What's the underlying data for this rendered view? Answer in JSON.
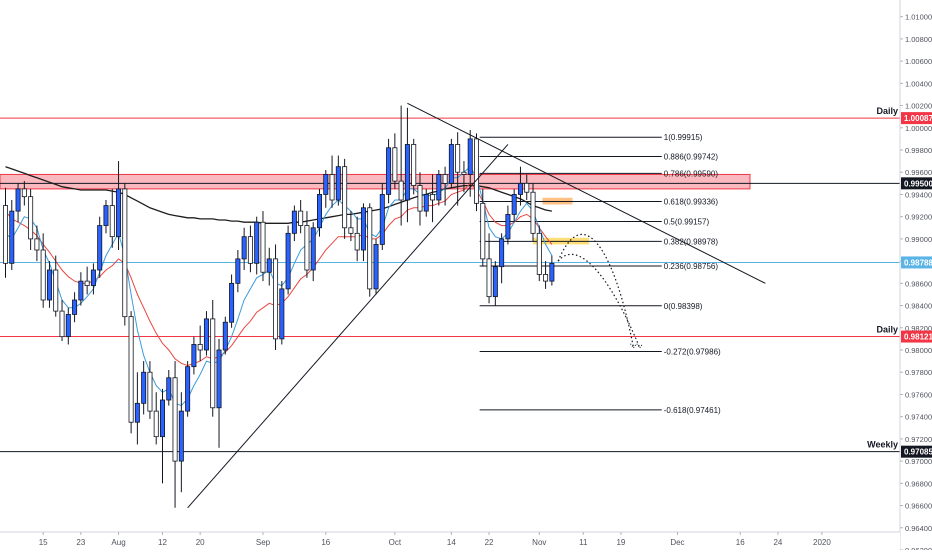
{
  "chart_data": {
    "type": "candlestick",
    "title": "",
    "xlabel": "",
    "ylabel": "",
    "ylim": [
      0.962,
      1.0115
    ],
    "yticks": [
      "1.01000",
      "1.00800",
      "1.00600",
      "1.00400",
      "1.00200",
      "1.00000",
      "0.99800",
      "0.99600",
      "0.99400",
      "0.99200",
      "0.99000",
      "0.98800",
      "0.98600",
      "0.98400",
      "0.98200",
      "0.98000",
      "0.97800",
      "0.97600",
      "0.97400",
      "0.97200",
      "0.97000",
      "0.96800",
      "0.96600",
      "0.96400",
      "0.96200"
    ],
    "xticks": [
      {
        "label": "15",
        "bar": 6
      },
      {
        "label": "23",
        "bar": 12
      },
      {
        "label": "Aug",
        "bar": 18
      },
      {
        "label": "12",
        "bar": 25
      },
      {
        "label": "20",
        "bar": 31
      },
      {
        "label": "Sep",
        "bar": 41
      },
      {
        "label": "16",
        "bar": 51
      },
      {
        "label": "Oct",
        "bar": 62
      },
      {
        "label": "14",
        "bar": 71
      },
      {
        "label": "22",
        "bar": 77
      },
      {
        "label": "Nov",
        "bar": 85
      },
      {
        "label": "11",
        "bar": 92
      },
      {
        "label": "19",
        "bar": 98
      },
      {
        "label": "Dec",
        "bar": 107
      },
      {
        "label": "16",
        "bar": 117
      },
      {
        "label": "24",
        "bar": 123
      },
      {
        "label": "2020",
        "bar": 130
      }
    ],
    "candles": [
      [
        0.993,
        0.9946,
        0.9865,
        0.9878
      ],
      [
        0.9878,
        0.9935,
        0.9872,
        0.9925
      ],
      [
        0.9925,
        0.995,
        0.9915,
        0.9945
      ],
      [
        0.9945,
        0.9952,
        0.993,
        0.9938
      ],
      [
        0.9938,
        0.9945,
        0.989,
        0.99
      ],
      [
        0.99,
        0.9912,
        0.988,
        0.989
      ],
      [
        0.989,
        0.9905,
        0.9838,
        0.9845
      ],
      [
        0.9845,
        0.988,
        0.9838,
        0.9872
      ],
      [
        0.9872,
        0.9885,
        0.983,
        0.9835
      ],
      [
        0.9835,
        0.9845,
        0.9808,
        0.9812
      ],
      [
        0.9812,
        0.9838,
        0.9805,
        0.9832
      ],
      [
        0.9832,
        0.9852,
        0.9825,
        0.9845
      ],
      [
        0.9845,
        0.987,
        0.984,
        0.9862
      ],
      [
        0.9862,
        0.9875,
        0.985,
        0.9858
      ],
      [
        0.9858,
        0.9878,
        0.985,
        0.9872
      ],
      [
        0.9872,
        0.992,
        0.9865,
        0.9912
      ],
      [
        0.9912,
        0.9935,
        0.9905,
        0.993
      ],
      [
        0.993,
        0.9945,
        0.9892,
        0.9902
      ],
      [
        0.9902,
        0.997,
        0.989,
        0.9945
      ],
      [
        0.9945,
        0.995,
        0.9822,
        0.983
      ],
      [
        0.983,
        0.9835,
        0.9725,
        0.9735
      ],
      [
        0.9735,
        0.978,
        0.9715,
        0.9752
      ],
      [
        0.9752,
        0.979,
        0.9742,
        0.978
      ],
      [
        0.978,
        0.979,
        0.9738,
        0.9745
      ],
      [
        0.9745,
        0.9762,
        0.9715,
        0.9722
      ],
      [
        0.9722,
        0.9765,
        0.968,
        0.9755
      ],
      [
        0.9755,
        0.9782,
        0.975,
        0.9775
      ],
      [
        0.9775,
        0.979,
        0.9658,
        0.97
      ],
      [
        0.97,
        0.9762,
        0.9672,
        0.9745
      ],
      [
        0.9745,
        0.979,
        0.974,
        0.9785
      ],
      [
        0.9785,
        0.9812,
        0.9778,
        0.9805
      ],
      [
        0.9805,
        0.9822,
        0.979,
        0.98
      ],
      [
        0.98,
        0.9835,
        0.9795,
        0.9828
      ],
      [
        0.9828,
        0.9845,
        0.974,
        0.9748
      ],
      [
        0.9748,
        0.981,
        0.9712,
        0.98
      ],
      [
        0.98,
        0.983,
        0.9796,
        0.9825
      ],
      [
        0.9825,
        0.9868,
        0.982,
        0.986
      ],
      [
        0.986,
        0.989,
        0.9852,
        0.9882
      ],
      [
        0.9882,
        0.991,
        0.9872,
        0.9902
      ],
      [
        0.9902,
        0.9912,
        0.987,
        0.9878
      ],
      [
        0.9878,
        0.992,
        0.9868,
        0.9915
      ],
      [
        0.9915,
        0.9925,
        0.9862,
        0.987
      ],
      [
        0.987,
        0.9892,
        0.9858,
        0.9882
      ],
      [
        0.9882,
        0.9895,
        0.98,
        0.981
      ],
      [
        0.981,
        0.9862,
        0.9805,
        0.9855
      ],
      [
        0.9855,
        0.9912,
        0.985,
        0.9905
      ],
      [
        0.9905,
        0.993,
        0.9898,
        0.9925
      ],
      [
        0.9925,
        0.9935,
        0.9905,
        0.9912
      ],
      [
        0.9912,
        0.9925,
        0.9865,
        0.9872
      ],
      [
        0.9872,
        0.9915,
        0.9862,
        0.991
      ],
      [
        0.991,
        0.9945,
        0.9902,
        0.994
      ],
      [
        0.994,
        0.9962,
        0.9928,
        0.9958
      ],
      [
        0.9958,
        0.9975,
        0.9928,
        0.9935
      ],
      [
        0.9935,
        0.9975,
        0.993,
        0.9965
      ],
      [
        0.9965,
        0.9972,
        0.99,
        0.991
      ],
      [
        0.991,
        0.9925,
        0.9898,
        0.9905
      ],
      [
        0.9905,
        0.992,
        0.988,
        0.989
      ],
      [
        0.989,
        0.9932,
        0.988,
        0.9928
      ],
      [
        0.9928,
        0.9932,
        0.9848,
        0.9855
      ],
      [
        0.9855,
        0.99,
        0.985,
        0.9895
      ],
      [
        0.9895,
        0.995,
        0.989,
        0.994
      ],
      [
        0.994,
        0.999,
        0.9932,
        0.9982
      ],
      [
        0.9982,
        0.9995,
        0.9945,
        0.9952
      ],
      [
        0.9952,
        1.002,
        0.9912,
        0.9935
      ],
      [
        0.9935,
        1.0018,
        0.9915,
        0.9985
      ],
      [
        0.9985,
        0.999,
        0.994,
        0.9948
      ],
      [
        0.9948,
        0.996,
        0.9912,
        0.9925
      ],
      [
        0.9925,
        0.9945,
        0.992,
        0.994
      ],
      [
        0.994,
        0.9958,
        0.9915,
        0.9935
      ],
      [
        0.9935,
        0.9962,
        0.993,
        0.9958
      ],
      [
        0.9958,
        0.9965,
        0.993,
        0.995
      ],
      [
        0.995,
        0.999,
        0.9946,
        0.9985
      ],
      [
        0.9985,
        0.9996,
        0.993,
        0.996
      ],
      [
        0.996,
        0.997,
        0.9942,
        0.9958
      ],
      [
        0.9958,
        0.9998,
        0.9938,
        0.999
      ],
      [
        0.999,
        0.9995,
        0.9925,
        0.9932
      ],
      [
        0.9932,
        0.9945,
        0.9875,
        0.9882
      ],
      [
        0.9882,
        0.9905,
        0.9842,
        0.9848
      ],
      [
        0.9848,
        0.988,
        0.984,
        0.9875
      ],
      [
        0.9875,
        0.9905,
        0.986,
        0.99
      ],
      [
        0.99,
        0.993,
        0.9895,
        0.9922
      ],
      [
        0.9922,
        0.9945,
        0.9915,
        0.994
      ],
      [
        0.994,
        0.9965,
        0.993,
        0.995
      ],
      [
        0.995,
        0.9958,
        0.9935,
        0.9942
      ],
      [
        0.9942,
        0.995,
        0.9898,
        0.9905
      ],
      [
        0.9905,
        0.9912,
        0.9862,
        0.9868
      ],
      [
        0.9868,
        0.988,
        0.9855,
        0.9862
      ],
      [
        0.9862,
        0.9885,
        0.9858,
        0.9878
      ]
    ],
    "series": [
      {
        "name": "",
        "color": "#1e1e1e",
        "values": [
          0.9965,
          0.9963,
          0.9961,
          0.9959,
          0.9957,
          0.9955,
          0.9953,
          0.9951,
          0.9949,
          0.9947,
          0.9946,
          0.9945,
          0.9944,
          0.9944,
          0.9944,
          0.9944,
          0.9944,
          0.9943,
          0.9942,
          0.994,
          0.9937,
          0.9934,
          0.9931,
          0.9928,
          0.9926,
          0.9924,
          0.9922,
          0.9921,
          0.992,
          0.9919,
          0.9919,
          0.9918,
          0.9918,
          0.9918,
          0.9917,
          0.9917,
          0.9916,
          0.9916,
          0.9915,
          0.9915,
          0.9915,
          0.9914,
          0.9914,
          0.9914,
          0.9914,
          0.9914,
          0.9915,
          0.9915,
          0.9916,
          0.9917,
          0.9918,
          0.9919,
          0.992,
          0.9921,
          0.9922,
          0.9922,
          0.9923,
          0.9924,
          0.9925,
          0.9926,
          0.9927,
          0.9929,
          0.9931,
          0.9933,
          0.9935,
          0.9937,
          0.9939,
          0.994,
          0.9942,
          0.9943,
          0.9945,
          0.9946,
          0.9947,
          0.9948,
          0.9948,
          0.9948,
          0.9947,
          0.9946,
          0.9944,
          0.9942,
          0.994,
          0.9938,
          0.9936,
          0.9933,
          0.993,
          0.9928,
          0.9926,
          0.9925
        ]
      },
      {
        "name": "",
        "color": "#e8473f",
        "values": [
          0.9925,
          0.9918,
          0.9915,
          0.9912,
          0.9908,
          0.9903,
          0.9895,
          0.9888,
          0.988,
          0.9872,
          0.9866,
          0.9862,
          0.986,
          0.986,
          0.9862,
          0.9866,
          0.9872,
          0.9876,
          0.9882,
          0.9878,
          0.9865,
          0.985,
          0.9838,
          0.9826,
          0.9815,
          0.9806,
          0.98,
          0.9792,
          0.9788,
          0.9786,
          0.9788,
          0.979,
          0.9794,
          0.9792,
          0.9794,
          0.9798,
          0.9804,
          0.9812,
          0.982,
          0.9826,
          0.9834,
          0.9838,
          0.9842,
          0.984,
          0.9842,
          0.9848,
          0.9856,
          0.9864,
          0.9868,
          0.9874,
          0.9882,
          0.989,
          0.9896,
          0.9902,
          0.9902,
          0.9902,
          0.9902,
          0.9904,
          0.99,
          0.99,
          0.9904,
          0.9912,
          0.9918,
          0.992,
          0.9926,
          0.9928,
          0.9928,
          0.993,
          0.993,
          0.9932,
          0.9934,
          0.994,
          0.9942,
          0.9944,
          0.995,
          0.9944,
          0.9934,
          0.9922,
          0.9915,
          0.9912,
          0.9912,
          0.9915,
          0.992,
          0.9922,
          0.9918,
          0.991,
          0.9902,
          0.9895
        ]
      },
      {
        "name": "",
        "color": "#3b9bdc",
        "values": [
          0.9905,
          0.99,
          0.991,
          0.992,
          0.9918,
          0.991,
          0.989,
          0.9878,
          0.9862,
          0.9845,
          0.9838,
          0.9838,
          0.9842,
          0.9848,
          0.9855,
          0.987,
          0.9885,
          0.9895,
          0.9905,
          0.9885,
          0.985,
          0.9818,
          0.9795,
          0.978,
          0.9768,
          0.9762,
          0.9765,
          0.9752,
          0.975,
          0.9756,
          0.9768,
          0.9778,
          0.979,
          0.9788,
          0.979,
          0.98,
          0.9812,
          0.9828,
          0.9845,
          0.9855,
          0.9865,
          0.9868,
          0.9872,
          0.986,
          0.9858,
          0.9865,
          0.9878,
          0.989,
          0.9895,
          0.99,
          0.991,
          0.9922,
          0.993,
          0.9935,
          0.993,
          0.9925,
          0.9918,
          0.9918,
          0.9905,
          0.9902,
          0.991,
          0.9928,
          0.9935,
          0.9935,
          0.9945,
          0.9945,
          0.994,
          0.994,
          0.9938,
          0.9942,
          0.9945,
          0.9955,
          0.9955,
          0.996,
          0.9965,
          0.9955,
          0.9935,
          0.991,
          0.9902,
          0.99,
          0.9905,
          0.9915,
          0.9925,
          0.9932,
          0.9925,
          0.991,
          0.9895,
          0.9885
        ]
      }
    ],
    "horizontal_levels": [
      {
        "value": 1.00087,
        "label": "1.00087",
        "tag": "Daily",
        "color": "#f23645"
      },
      {
        "value": 0.995,
        "label": "0.99500",
        "tag": "",
        "color": "#131722"
      },
      {
        "value": 0.98788,
        "label": "0.98788",
        "tag": "",
        "color": "#5ab4e6"
      },
      {
        "value": 0.98121,
        "label": "0.98121",
        "tag": "Daily",
        "color": "#f23645"
      },
      {
        "value": 0.97085,
        "label": "0.97085",
        "tag": "Weekly",
        "color": "#131722"
      }
    ],
    "zones": [
      {
        "from": 0.9945,
        "to": 0.9958,
        "color": "#f23645"
      },
      {
        "from": 0.9931,
        "to": 0.9937,
        "color": "#ff8c1a"
      },
      {
        "from": 0.9895,
        "to": 0.9901,
        "color": "#ffc107"
      }
    ],
    "fibonacci": [
      {
        "ratio": "1",
        "value": 0.99915
      },
      {
        "ratio": "0.886",
        "value": 0.99742
      },
      {
        "ratio": "0.786",
        "value": 0.9959
      },
      {
        "ratio": "0.618",
        "value": 0.99336
      },
      {
        "ratio": "0.5",
        "value": 0.99157
      },
      {
        "ratio": "0.382",
        "value": 0.98978
      },
      {
        "ratio": "0.236",
        "value": 0.98756
      },
      {
        "ratio": "0",
        "value": 0.98398
      },
      {
        "ratio": "-0.272",
        "value": 0.97986
      },
      {
        "ratio": "-0.618",
        "value": 0.97461
      }
    ],
    "trendlines": [
      {
        "from": [
          29,
          0.9658
        ],
        "to": [
          80,
          0.9985
        ]
      },
      {
        "from": [
          64,
          1.0022
        ],
        "to": [
          121,
          0.986
        ]
      }
    ],
    "projections": [
      {
        "points": [
          [
            88,
            0.988
          ],
          [
            92,
            0.9935
          ],
          [
            97,
            0.989
          ],
          [
            100,
            0.9802
          ]
        ]
      },
      {
        "points": [
          [
            88,
            0.988
          ],
          [
            91,
            0.99
          ],
          [
            96,
            0.987
          ],
          [
            101,
            0.9802
          ]
        ]
      }
    ]
  }
}
